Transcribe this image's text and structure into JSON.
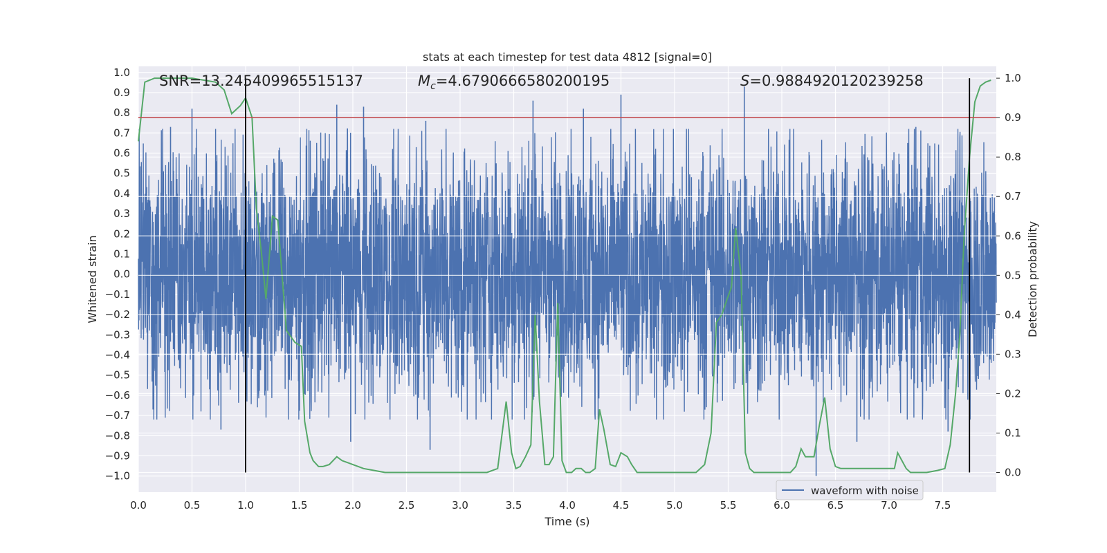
{
  "chart_data": {
    "type": "line",
    "title": "stats at each timestep for test data 4812 [signal=0]",
    "xlabel": "Time (s)",
    "ylabel_left": "Whitened strain",
    "ylabel_right": "Detection probability",
    "xlim": [
      0.0,
      8.0
    ],
    "ylim_left": [
      -1.08,
      1.03
    ],
    "ylim_right": [
      -0.05,
      1.03
    ],
    "x_ticks": [
      "0.0",
      "0.5",
      "1.0",
      "1.5",
      "2.0",
      "2.5",
      "3.0",
      "3.5",
      "4.0",
      "4.5",
      "5.0",
      "5.5",
      "6.0",
      "6.5",
      "7.0",
      "7.5"
    ],
    "y_ticks_left": [
      "1.0",
      "0.9",
      "0.8",
      "0.7",
      "0.6",
      "0.5",
      "0.4",
      "0.3",
      "0.2",
      "0.1",
      "0.0",
      "-0.1",
      "-0.2",
      "-0.3",
      "-0.4",
      "-0.5",
      "-0.6",
      "-0.7",
      "-0.8",
      "-0.9",
      "-1.0"
    ],
    "y_ticks_right": [
      "1.0",
      "0.9",
      "0.8",
      "0.7",
      "0.6",
      "0.5",
      "0.4",
      "0.3",
      "0.2",
      "0.1",
      "0.0"
    ],
    "annotations": {
      "snr": "SNR=13.245409965515137",
      "mc_symbol": "M",
      "mc_sub": "c",
      "mc_value": "=4.6790666580200195",
      "s_symbol": "S",
      "s_value": "=0.9884920120239258"
    },
    "legend": [
      "waveform with noise"
    ],
    "threshold_probability": 0.9,
    "vertical_lines_time": [
      1.0,
      7.75
    ],
    "waveform": {
      "name": "waveform with noise",
      "color": "#4c72b0",
      "description": "dense noise, typical amplitude about ±0.5, spikes to about ±0.9",
      "peaks": [
        {
          "t": 0.5,
          "v": 0.82
        },
        {
          "t": 0.3,
          "v": 0.73
        },
        {
          "t": 0.77,
          "v": -0.77
        },
        {
          "t": 1.85,
          "v": 0.84
        },
        {
          "t": 2.1,
          "v": 0.83
        },
        {
          "t": 1.98,
          "v": -0.83
        },
        {
          "t": 2.68,
          "v": 0.76
        },
        {
          "t": 2.72,
          "v": -0.87
        },
        {
          "t": 3.68,
          "v": 0.86
        },
        {
          "t": 4.5,
          "v": 0.89
        },
        {
          "t": 4.15,
          "v": 0.82
        },
        {
          "t": 5.65,
          "v": 0.93
        },
        {
          "t": 6.32,
          "v": -1.0
        },
        {
          "t": 6.7,
          "v": -0.83
        },
        {
          "t": 7.25,
          "v": 0.73
        },
        {
          "t": 7.55,
          "v": -0.78
        }
      ]
    },
    "probability": {
      "name": "detection probability",
      "color": "#55a868",
      "t": [
        0.0,
        0.06,
        0.15,
        0.3,
        0.5,
        0.72,
        0.8,
        0.87,
        0.95,
        1.0,
        1.06,
        1.1,
        1.15,
        1.19,
        1.25,
        1.3,
        1.38,
        1.46,
        1.52,
        1.55,
        1.6,
        1.63,
        1.68,
        1.72,
        1.78,
        1.85,
        1.9,
        1.95,
        2.0,
        2.05,
        2.1,
        2.2,
        2.3,
        2.5,
        2.7,
        2.8,
        2.95,
        3.1,
        3.25,
        3.35,
        3.43,
        3.48,
        3.52,
        3.56,
        3.61,
        3.66,
        3.7,
        3.74,
        3.79,
        3.83,
        3.87,
        3.91,
        3.95,
        3.99,
        4.04,
        4.08,
        4.13,
        4.17,
        4.21,
        4.26,
        4.3,
        4.34,
        4.4,
        4.45,
        4.5,
        4.56,
        4.6,
        4.65,
        4.7,
        4.75,
        4.8,
        4.85,
        4.9,
        4.95,
        5.0,
        5.1,
        5.2,
        5.28,
        5.34,
        5.39,
        5.44,
        5.49,
        5.53,
        5.57,
        5.62,
        5.66,
        5.7,
        5.74,
        5.78,
        5.82,
        5.9,
        6.0,
        6.08,
        6.13,
        6.18,
        6.22,
        6.26,
        6.3,
        6.35,
        6.4,
        6.45,
        6.5,
        6.55,
        6.6,
        6.7,
        6.85,
        6.95,
        7.0,
        7.05,
        7.08,
        7.12,
        7.16,
        7.2,
        7.25,
        7.35,
        7.45,
        7.52,
        7.57,
        7.62,
        7.66,
        7.7,
        7.75,
        7.8,
        7.85,
        7.9,
        7.95
      ],
      "p": [
        0.84,
        0.99,
        1.0,
        1.0,
        1.0,
        0.99,
        0.97,
        0.91,
        0.93,
        0.95,
        0.9,
        0.67,
        0.55,
        0.44,
        0.65,
        0.64,
        0.36,
        0.33,
        0.32,
        0.13,
        0.05,
        0.03,
        0.015,
        0.015,
        0.02,
        0.04,
        0.03,
        0.025,
        0.02,
        0.015,
        0.01,
        0.005,
        0.0,
        0.0,
        0.0,
        0.0,
        0.0,
        0.0,
        0.0,
        0.01,
        0.18,
        0.05,
        0.01,
        0.015,
        0.04,
        0.07,
        0.4,
        0.18,
        0.02,
        0.02,
        0.04,
        0.43,
        0.03,
        0.0,
        0.0,
        0.01,
        0.01,
        0.0,
        0.0,
        0.01,
        0.16,
        0.11,
        0.02,
        0.015,
        0.05,
        0.04,
        0.02,
        0.0,
        0.0,
        0.0,
        0.0,
        0.0,
        0.0,
        0.0,
        0.0,
        0.0,
        0.0,
        0.02,
        0.1,
        0.38,
        0.4,
        0.44,
        0.47,
        0.62,
        0.5,
        0.05,
        0.01,
        0.0,
        0.0,
        0.0,
        0.0,
        0.0,
        0.0,
        0.015,
        0.06,
        0.04,
        0.04,
        0.04,
        0.12,
        0.19,
        0.06,
        0.015,
        0.01,
        0.01,
        0.01,
        0.01,
        0.01,
        0.01,
        0.01,
        0.05,
        0.03,
        0.01,
        0.0,
        0.0,
        0.0,
        0.005,
        0.01,
        0.07,
        0.2,
        0.35,
        0.6,
        0.8,
        0.94,
        0.98,
        0.99,
        0.995
      ]
    }
  }
}
